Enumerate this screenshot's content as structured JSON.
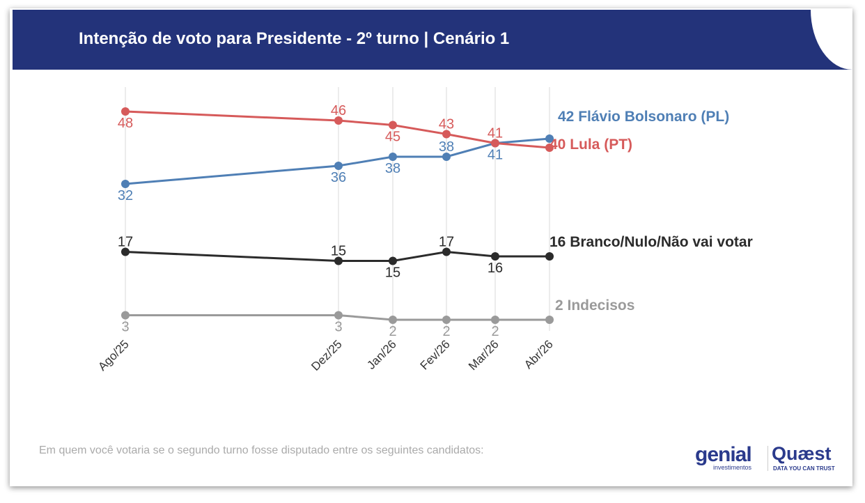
{
  "title": "Intenção de voto para Presidente - 2º turno | Cenário 1",
  "footnote": "Em quem você votaria se o segundo turno fosse disputado entre os seguintes candidatos:",
  "logos": {
    "genial": "genial",
    "genial_sub": "investimentos",
    "quaest": "Quæst",
    "quaest_sub": "DATA YOU CAN TRUST"
  },
  "chart_data": {
    "type": "line",
    "title": "Intenção de voto para Presidente - 2º turno | Cenário 1",
    "categories": [
      "Ago/25",
      "Dez/25",
      "Jan/26",
      "Fev/26",
      "Mar/26",
      "Abr/26"
    ],
    "grid": "vertical",
    "legend": "end-of-line labels",
    "series": [
      {
        "name": "Flávio Bolsonaro (PL)",
        "end_label": "42 Flávio Bolsonaro (PL)",
        "color": "#4f7fb5",
        "values": [
          32,
          36,
          38,
          38,
          41,
          42
        ],
        "label_pos": [
          "below",
          "below",
          "below",
          "above",
          "below"
        ]
      },
      {
        "name": "Lula (PT)",
        "end_label": "40 Lula (PT)",
        "color": "#d65a5a",
        "values": [
          48,
          46,
          45,
          43,
          41,
          40
        ],
        "label_pos": [
          "below",
          "above",
          "below",
          "above",
          "above"
        ]
      },
      {
        "name": "Branco/Nulo/Não vai votar",
        "end_label": "16 Branco/Nulo/Não vai votar",
        "color": "#2b2b2b",
        "values": [
          17,
          15,
          15,
          17,
          16,
          16
        ],
        "label_pos": [
          "above",
          "above",
          "below",
          "above",
          "below"
        ]
      },
      {
        "name": "Indecisos",
        "end_label": "2 Indecisos",
        "color": "#9a9a9a",
        "values": [
          3,
          3,
          2,
          2,
          2,
          2
        ],
        "label_pos": [
          "below",
          "below",
          "below",
          "below",
          "below"
        ]
      }
    ]
  }
}
